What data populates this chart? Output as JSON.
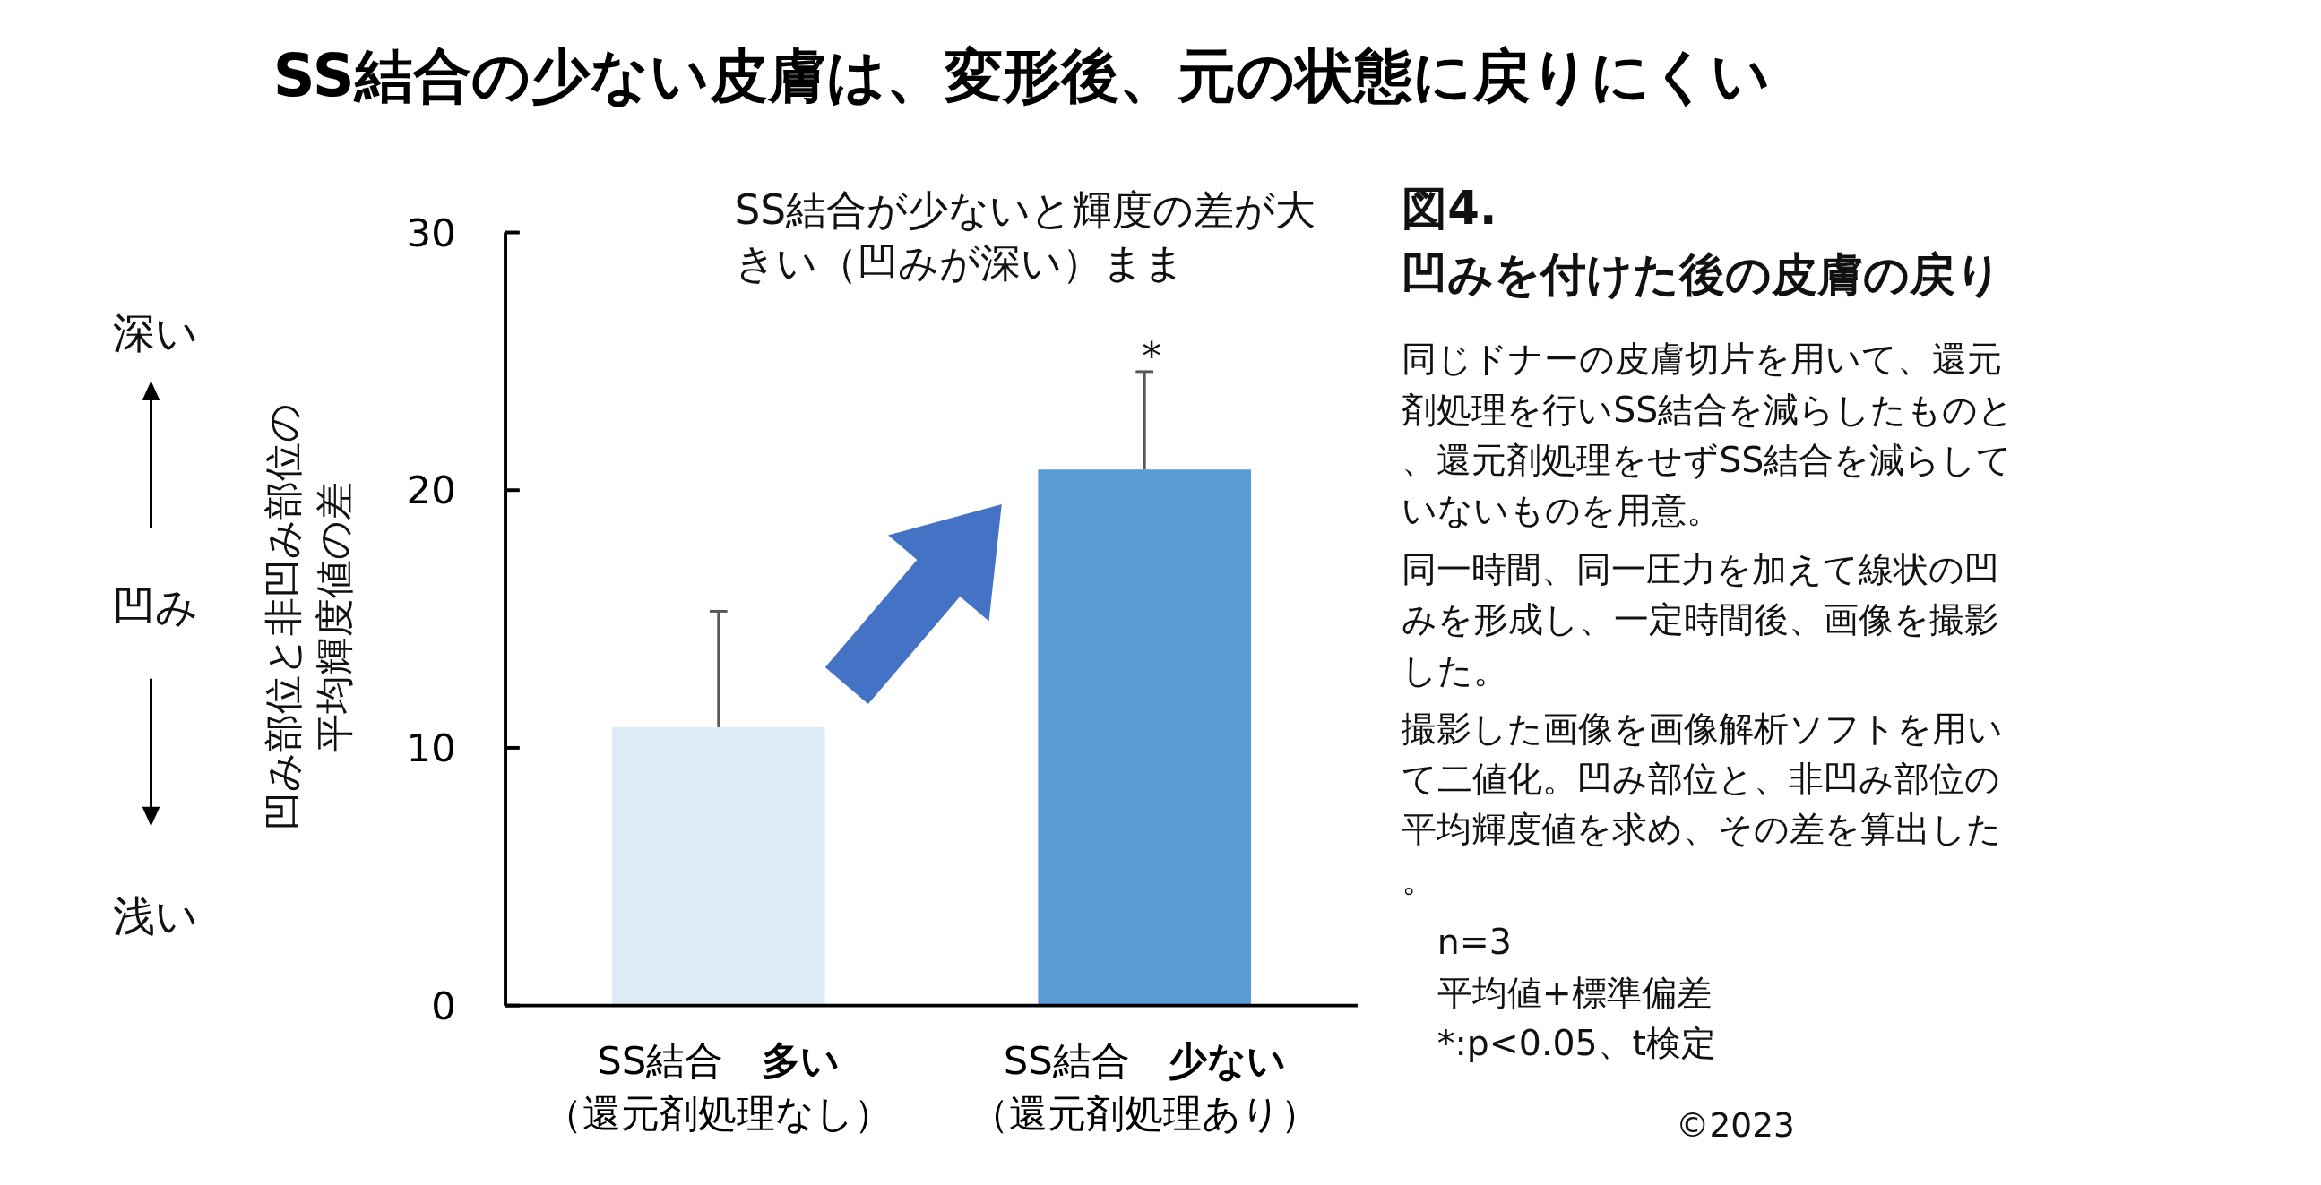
{
  "chart_data": {
    "type": "bar",
    "title": "SS結合の少ない皮膚は、変形後、元の状態に戻りにくい",
    "ylabel": "凹み部位と非凹み部位の平均輝度値の差",
    "categories": [
      "SS結合　多い（還元剤処理なし）",
      "SS結合　少ない（還元剤処理あり）"
    ],
    "values": [
      10.8,
      20.8
    ],
    "colors": [
      "#deebf7",
      "#5b9bd5"
    ],
    "errors": [
      [
        10.8,
        15.3
      ],
      [
        20.8,
        24.6
      ]
    ],
    "ylim": [
      0,
      30
    ],
    "yticks": [
      0,
      10,
      20,
      30
    ],
    "grid": false,
    "annotations": [
      "*",
      "SS結合が少ないと輝度の差が大きい（凹みが深い）まま",
      "深い",
      "凹み",
      "浅い",
      "図4.",
      "凹みを付けた後の皮膚の戻り",
      "同じドナーの皮膚切片を用いて、還元剤処理を行いSS結合を減らしたものと、還元剤処理をせずSS結合を減らしていないものを用意。",
      "同一時間、同一圧力を加えて線状の凹みを形成し、一定時間後、画像を撮影した。",
      "撮影した画像を画像解析ソフトを用いて二値化。凹み部位と、非凹み部位の平均輝度値を求め、その差を算出した。",
      "n=3",
      "平均値+標準偏差",
      " *:p<0.05、t検定",
      "©2023"
    ]
  }
}
